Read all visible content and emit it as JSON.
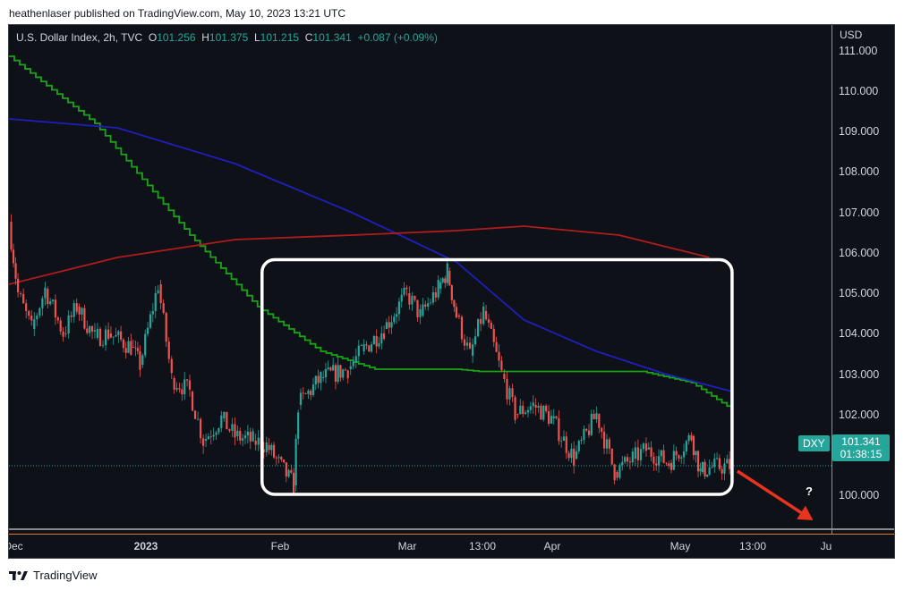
{
  "credit": "heathenlaser published on TradingView.com, May 10, 2023 13:21 UTC",
  "footer": {
    "brand": "TradingView",
    "logo_icon": "tradingview-logo-icon"
  },
  "legend": {
    "instrument": "U.S. Dollar Index, 2h, TVC",
    "o_key": "O",
    "o_val": "101.256",
    "h_key": "H",
    "h_val": "101.375",
    "l_key": "L",
    "l_val": "101.215",
    "c_key": "C",
    "c_val": "101.341",
    "change": "+0.087 (+0.09%)"
  },
  "axis": {
    "unit": "USD",
    "yticks": [
      "111.000",
      "110.000",
      "109.000",
      "108.000",
      "107.000",
      "106.000",
      "105.000",
      "104.000",
      "103.000",
      "102.000",
      "100.000"
    ],
    "xticks": [
      "Dec",
      "2023",
      "Feb",
      "Mar",
      "13:00",
      "Apr",
      "May",
      "13:00",
      "Ju"
    ]
  },
  "tags": {
    "symbol": "DXY",
    "price": "101.341",
    "countdown": "01:38:15"
  },
  "annotation": {
    "question": "?"
  },
  "colors": {
    "background": "#0e1118",
    "up": "#26a69a",
    "down": "#ef5350",
    "ma_green": "#1aa31a",
    "ma_blue": "#1f1fbf",
    "ma_red": "#b01c1c",
    "box": "#ffffff",
    "arrow": "#e8331e",
    "axis_border": "#e07b2d"
  },
  "chart_data": {
    "type": "candlestick",
    "instrument": "U.S. Dollar Index, 2h, TVC",
    "ylim": [
      99.8,
      111.2
    ],
    "x_domain": [
      "2022-12-01",
      "2023-06-01"
    ],
    "last_price": 101.341,
    "price_points": [
      {
        "date": "2022-12-01",
        "value": 106.8
      },
      {
        "date": "2022-12-03",
        "value": 105.2
      },
      {
        "date": "2022-12-06",
        "value": 104.4
      },
      {
        "date": "2022-12-09",
        "value": 105.3
      },
      {
        "date": "2022-12-13",
        "value": 104.3
      },
      {
        "date": "2022-12-16",
        "value": 104.9
      },
      {
        "date": "2022-12-20",
        "value": 104.2
      },
      {
        "date": "2022-12-23",
        "value": 104.3
      },
      {
        "date": "2022-12-28",
        "value": 104.0
      },
      {
        "date": "2022-12-30",
        "value": 103.6
      },
      {
        "date": "2023-01-03",
        "value": 105.4
      },
      {
        "date": "2023-01-06",
        "value": 103.3
      },
      {
        "date": "2023-01-10",
        "value": 103.0
      },
      {
        "date": "2023-01-13",
        "value": 101.9
      },
      {
        "date": "2023-01-17",
        "value": 102.4
      },
      {
        "date": "2023-01-20",
        "value": 102.0
      },
      {
        "date": "2023-01-24",
        "value": 101.9
      },
      {
        "date": "2023-01-27",
        "value": 101.8
      },
      {
        "date": "2023-02-02",
        "value": 100.9
      },
      {
        "date": "2023-02-03",
        "value": 102.7
      },
      {
        "date": "2023-02-08",
        "value": 103.3
      },
      {
        "date": "2023-02-14",
        "value": 103.5
      },
      {
        "date": "2023-02-17",
        "value": 103.9
      },
      {
        "date": "2023-02-22",
        "value": 104.4
      },
      {
        "date": "2023-02-27",
        "value": 105.2
      },
      {
        "date": "2023-03-02",
        "value": 104.7
      },
      {
        "date": "2023-03-06",
        "value": 105.3
      },
      {
        "date": "2023-03-08",
        "value": 105.7
      },
      {
        "date": "2023-03-10",
        "value": 104.7
      },
      {
        "date": "2023-03-13",
        "value": 103.8
      },
      {
        "date": "2023-03-16",
        "value": 104.8
      },
      {
        "date": "2023-03-20",
        "value": 103.4
      },
      {
        "date": "2023-03-23",
        "value": 102.5
      },
      {
        "date": "2023-03-27",
        "value": 102.7
      },
      {
        "date": "2023-03-31",
        "value": 102.4
      },
      {
        "date": "2023-04-05",
        "value": 101.5
      },
      {
        "date": "2023-04-10",
        "value": 102.5
      },
      {
        "date": "2023-04-14",
        "value": 101.2
      },
      {
        "date": "2023-04-18",
        "value": 101.5
      },
      {
        "date": "2023-04-21",
        "value": 101.7
      },
      {
        "date": "2023-04-26",
        "value": 101.4
      },
      {
        "date": "2023-05-01",
        "value": 102.0
      },
      {
        "date": "2023-05-03",
        "value": 101.2
      },
      {
        "date": "2023-05-05",
        "value": 101.3
      },
      {
        "date": "2023-05-10",
        "value": 101.341
      }
    ],
    "series": [
      {
        "color": "green",
        "values": [
          {
            "date": "2022-12-01",
            "value": 110.5
          },
          {
            "date": "2022-12-20",
            "value": 109.0
          },
          {
            "date": "2023-01-10",
            "value": 106.5
          },
          {
            "date": "2023-01-25",
            "value": 104.9
          },
          {
            "date": "2023-02-08",
            "value": 103.9
          },
          {
            "date": "2023-02-20",
            "value": 103.5
          },
          {
            "date": "2023-03-10",
            "value": 103.5
          },
          {
            "date": "2023-03-15",
            "value": 103.45
          },
          {
            "date": "2023-04-05",
            "value": 103.45
          },
          {
            "date": "2023-04-20",
            "value": 103.45
          },
          {
            "date": "2023-05-01",
            "value": 103.2
          },
          {
            "date": "2023-05-10",
            "value": 102.6
          }
        ]
      },
      {
        "color": "blue",
        "values": [
          {
            "date": "2022-12-01",
            "value": 109.1
          },
          {
            "date": "2022-12-25",
            "value": 108.9
          },
          {
            "date": "2023-01-20",
            "value": 108.1
          },
          {
            "date": "2023-02-15",
            "value": 107.0
          },
          {
            "date": "2023-03-10",
            "value": 105.9
          },
          {
            "date": "2023-03-25",
            "value": 104.6
          },
          {
            "date": "2023-04-10",
            "value": 103.9
          },
          {
            "date": "2023-04-25",
            "value": 103.4
          },
          {
            "date": "2023-05-10",
            "value": 103.0
          }
        ]
      },
      {
        "color": "red",
        "values": [
          {
            "date": "2022-12-01",
            "value": 105.4
          },
          {
            "date": "2022-12-25",
            "value": 106.0
          },
          {
            "date": "2023-01-20",
            "value": 106.4
          },
          {
            "date": "2023-02-15",
            "value": 106.5
          },
          {
            "date": "2023-03-10",
            "value": 106.6
          },
          {
            "date": "2023-03-25",
            "value": 106.7
          },
          {
            "date": "2023-04-15",
            "value": 106.5
          },
          {
            "date": "2023-05-05",
            "value": 106.0
          }
        ]
      }
    ],
    "annotations": [
      {
        "type": "rectangle",
        "x_range": [
          "2023-01-26",
          "2023-05-10"
        ],
        "y_range": [
          100.7,
          105.95
        ]
      },
      {
        "type": "arrow",
        "from": {
          "date": "2023-05-10",
          "value": 101.3
        },
        "to": {
          "date": "2023-05-20",
          "value": 100.2
        }
      },
      {
        "type": "text",
        "text": "?",
        "date": "2023-05-24",
        "value": 100.05
      }
    ]
  }
}
